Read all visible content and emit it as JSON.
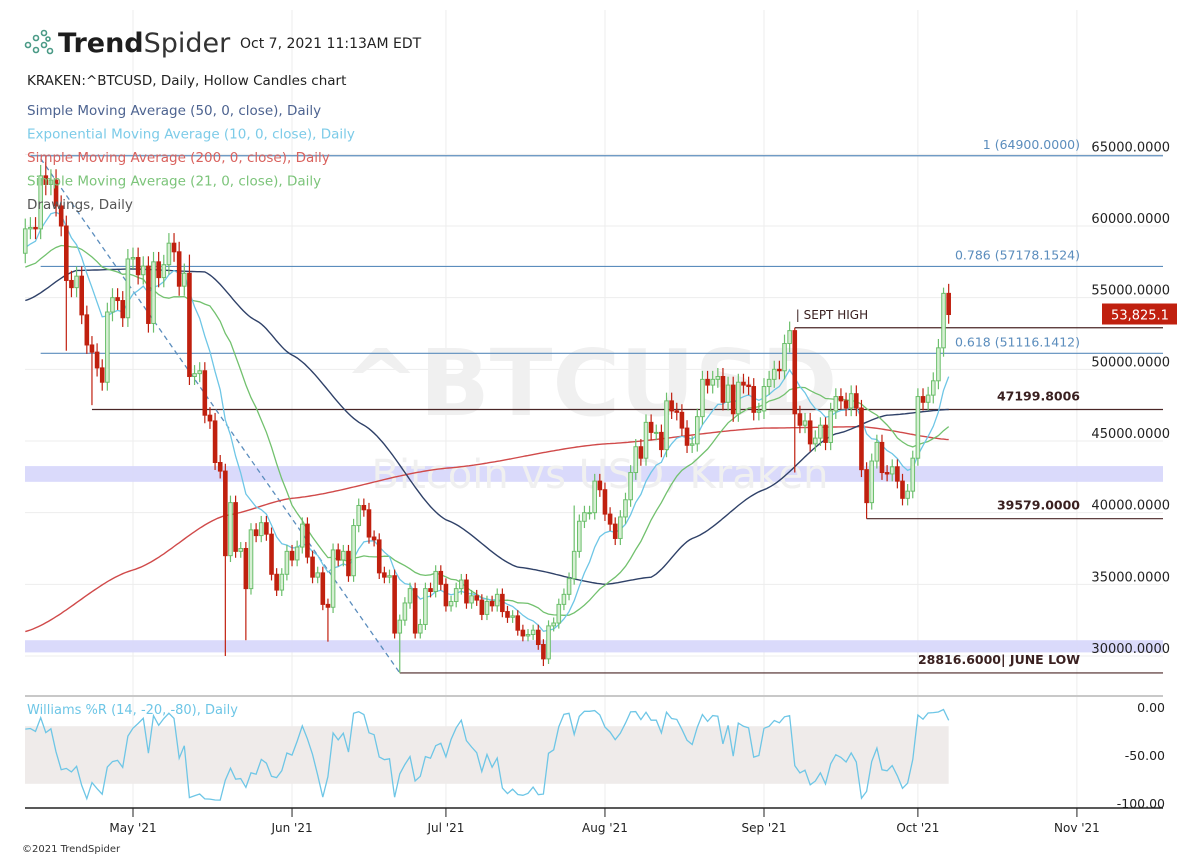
{
  "header": {
    "brand_bold": "Trend",
    "brand_light": "Spider",
    "timestamp": "Oct 7, 2021 11:13AM EDT",
    "symbol_line": "KRAKEN:^BTCUSD, Daily, Hollow Candles chart"
  },
  "legend": [
    {
      "label": "Simple Moving Average (50, 0, close), Daily",
      "color": "#4d6390"
    },
    {
      "label": "Exponential Moving Average (10, 0, close), Daily",
      "color": "#7ccbe8"
    },
    {
      "label": "Simple Moving Average (200, 0, close), Daily",
      "color": "#d9625e"
    },
    {
      "label": "Simple Moving Average (21, 0, close), Daily",
      "color": "#7cc47a"
    },
    {
      "label": "Drawings, Daily",
      "color": "#555555"
    }
  ],
  "watermark": {
    "symbol": "^BTCUSD",
    "description": "Bitcoin vs USD, Kraken"
  },
  "footer": {
    "copyright": "©2021 TrendSpider"
  },
  "colors": {
    "up": "#6cbf6c",
    "up_fill": "#d6efd3",
    "down": "#c0200f",
    "fib": "#5b8dbd",
    "drawing": "#4a2626",
    "zone": "#d6d6fb",
    "sma50": "#2f4168",
    "ema10": "#6ec6e6",
    "sma200": "#d04a4a",
    "sma21": "#72c16e",
    "price_tag": "#c0200f",
    "wr": "#6ec6e6",
    "wr_band": "#efebea"
  },
  "chart_data": [
    {
      "type": "candlestick",
      "style": "hollow candles",
      "title": "KRAKEN:^BTCUSD, Daily, Hollow Candles chart",
      "start_date": "2021-04-10",
      "first_open": 58100,
      "close": [
        59800,
        59900,
        59800,
        63500,
        62900,
        63200,
        61400,
        60000,
        56200,
        55700,
        56500,
        53800,
        51700,
        51200,
        50100,
        49100,
        54000,
        55000,
        54800,
        53600,
        57700,
        57800,
        56600,
        57200,
        53200,
        57500,
        56400,
        57300,
        58800,
        58200,
        55800,
        56700,
        49500,
        49700,
        49900,
        46800,
        46400,
        43500,
        42900,
        37000,
        40700,
        37300,
        37500,
        34700,
        38800,
        38400,
        39300,
        38500,
        35700,
        34600,
        35700,
        37300,
        36700,
        37600,
        39200,
        36900,
        35500,
        35800,
        33600,
        33400,
        37400,
        36700,
        37300,
        35600,
        39100,
        40500,
        40200,
        38300,
        38100,
        35800,
        35500,
        35600,
        31600,
        32500,
        33700,
        34700,
        31600,
        32200,
        34700,
        34500,
        35900,
        35000,
        33500,
        33800,
        34700,
        35300,
        33700,
        34200,
        33900,
        32900,
        33800,
        33500,
        34300,
        33100,
        32700,
        32800,
        31800,
        31400,
        31500,
        31800,
        30800,
        29800,
        32100,
        32300,
        33600,
        34300,
        35400,
        37300,
        39400,
        40000,
        40000,
        42200,
        41600,
        39900,
        39200,
        38200,
        39700,
        40900,
        42800,
        44600,
        43800,
        46300,
        45600,
        45600,
        44400,
        47800,
        47100,
        47000,
        45900,
        44700,
        44800,
        46700,
        49300,
        48900,
        49300,
        49500,
        47700,
        48900,
        46900,
        49100,
        48900,
        48800,
        47000,
        47100,
        48800,
        49300,
        50000,
        49900,
        51800,
        52700,
        46900,
        46100,
        46400,
        44800,
        45200,
        46100,
        44900,
        47100,
        48100,
        47800,
        47300,
        48300,
        47300,
        43000,
        40700,
        43600,
        44900,
        42800,
        42700,
        43200,
        42200,
        41000,
        41500,
        43800,
        48100,
        47700,
        48200,
        49200,
        51500,
        55300,
        53825.1
      ],
      "wick_extremes": {
        "2021-04-14": {
          "high": 64900
        },
        "2021-04-18": {
          "low": 51300
        },
        "2021-04-23": {
          "low": 47500
        },
        "2021-05-12": {
          "high": 58000
        },
        "2021-05-19": {
          "low": 30000
        },
        "2021-05-23": {
          "low": 31100
        },
        "2021-06-08": {
          "low": 31000
        },
        "2021-06-22": {
          "low": 28816.6
        },
        "2021-07-20": {
          "low": 29300
        },
        "2021-07-26": {
          "high": 40500
        },
        "2021-09-07": {
          "high": 52900,
          "low": 42800
        },
        "2021-09-21": {
          "low": 39579
        },
        "2021-10-06": {
          "high": 55700
        }
      },
      "last_price_label": "53,825.1",
      "yaxis": {
        "range": [
          27500,
          67000
        ],
        "ticks": [
          "65000.0000",
          "60000.0000",
          "55000.0000",
          "50000.0000",
          "45000.0000",
          "40000.0000",
          "35000.0000",
          "30000.0000"
        ],
        "tick_values": [
          65000,
          60000,
          55000,
          50000,
          45000,
          40000,
          35000,
          30000
        ]
      },
      "xaxis": {
        "ticks": [
          "May '21",
          "Jun '21",
          "Jul '21",
          "Aug '21",
          "Sep '21",
          "Oct '21",
          "Nov '21"
        ],
        "tick_dates": [
          "2021-05-01",
          "2021-06-01",
          "2021-07-01",
          "2021-08-01",
          "2021-09-01",
          "2021-10-01",
          "2021-11-01"
        ]
      },
      "grid": true,
      "moving_averages": {
        "sma50": [
          [
            "2021-04-10",
            54800
          ],
          [
            "2021-04-20",
            56900
          ],
          [
            "2021-05-01",
            57000
          ],
          [
            "2021-05-15",
            56800
          ],
          [
            "2021-05-25",
            53400
          ],
          [
            "2021-06-01",
            51000
          ],
          [
            "2021-06-15",
            46100
          ],
          [
            "2021-07-01",
            39500
          ],
          [
            "2021-07-15",
            36200
          ],
          [
            "2021-08-01",
            35000
          ],
          [
            "2021-08-10",
            35500
          ],
          [
            "2021-08-18",
            38200
          ],
          [
            "2021-09-01",
            41600
          ],
          [
            "2021-09-15",
            45500
          ],
          [
            "2021-09-25",
            46800
          ],
          [
            "2021-10-07",
            47200
          ]
        ],
        "sma200": [
          [
            "2021-04-10",
            31700
          ],
          [
            "2021-05-01",
            36000
          ],
          [
            "2021-05-19",
            39800
          ],
          [
            "2021-06-01",
            41000
          ],
          [
            "2021-07-01",
            43100
          ],
          [
            "2021-08-01",
            44800
          ],
          [
            "2021-09-01",
            45900
          ],
          [
            "2021-09-20",
            46000
          ],
          [
            "2021-10-07",
            45100
          ]
        ],
        "ema10_period": 10,
        "sma21_period": 21
      },
      "fib_levels": [
        {
          "label": "1 (64900.0000)",
          "value": 64900,
          "from": "2021-04-11"
        },
        {
          "label": "0.786 (57178.1524)",
          "value": 57178.1524,
          "from": "2021-04-13"
        },
        {
          "label": "0.618 (51116.1412)",
          "value": 51116.1412,
          "from": "2021-04-13"
        }
      ],
      "horizontal_lines": [
        {
          "label": "| SEPT HIGH",
          "value": 52900,
          "from": "2021-09-07",
          "label_pos": "above-left"
        },
        {
          "label": "47199.8006",
          "value": 47199.8006,
          "from": "2021-04-23"
        },
        {
          "label": "39579.0000",
          "value": 39579,
          "from": "2021-09-21"
        },
        {
          "label": "28816.6000| JUNE LOW",
          "value": 28816.6,
          "from": "2021-06-22"
        }
      ],
      "zones": [
        [
          42150,
          43250
        ],
        [
          30250,
          31100
        ]
      ],
      "trendline": {
        "from": [
          "2021-04-13",
          64700
        ],
        "to": [
          "2021-06-22",
          28816.6
        ],
        "style": "dashed"
      }
    },
    {
      "type": "line",
      "title": "Williams %R (14, -20, -80), Daily",
      "period": 14,
      "upper": -20,
      "lower": -80,
      "yaxis": {
        "range": [
          -100,
          0
        ],
        "ticks": [
          "0.00",
          "-50.00",
          "-100.00"
        ],
        "tick_values": [
          0,
          -50,
          -100
        ]
      }
    }
  ]
}
